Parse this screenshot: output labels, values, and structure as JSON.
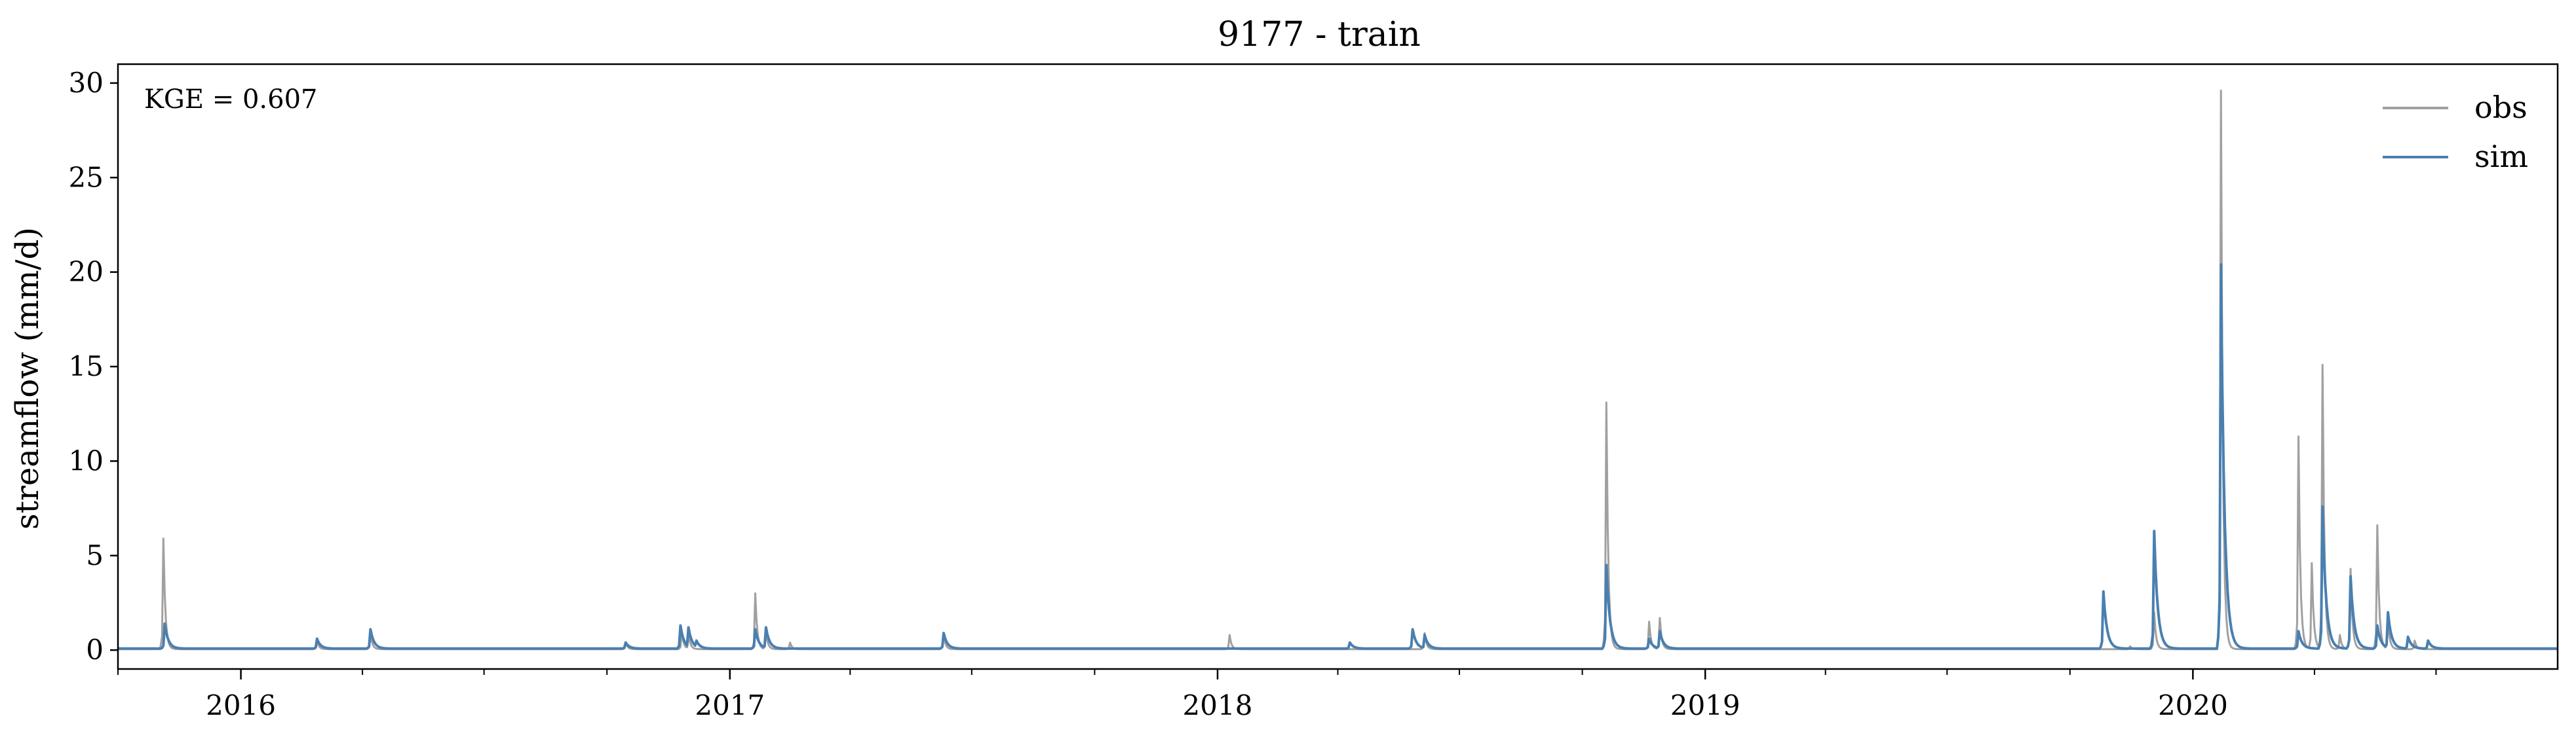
{
  "chart_data": {
    "type": "line",
    "title": "9177 - train",
    "xlabel": "",
    "ylabel": "streamflow (mm/d)",
    "annotation": "KGE = 0.607",
    "xlim": [
      "2015-10-01",
      "2020-09-30"
    ],
    "ylim": [
      -1,
      31
    ],
    "yticks": [
      0,
      5,
      10,
      15,
      20,
      25,
      30
    ],
    "xticks": [
      "2016-01-01",
      "2017-01-01",
      "2018-01-01",
      "2019-01-01",
      "2020-01-01"
    ],
    "xtick_labels": [
      "2016",
      "2017",
      "2018",
      "2019",
      "2020"
    ],
    "grid": false,
    "legend": "top-right",
    "series": [
      {
        "name": "obs",
        "color": "#a0a0a0",
        "base": 0.05,
        "peaks": [
          [
            "2015-11-04",
            5.9
          ],
          [
            "2016-02-27",
            0.5
          ],
          [
            "2016-04-07",
            0.9
          ],
          [
            "2016-10-15",
            0.4
          ],
          [
            "2016-11-26",
            1.0
          ],
          [
            "2016-12-01",
            0.9
          ],
          [
            "2017-01-20",
            3.0
          ],
          [
            "2017-01-28",
            1.0
          ],
          [
            "2017-02-15",
            0.4
          ],
          [
            "2017-06-10",
            0.8
          ],
          [
            "2018-01-10",
            0.8
          ],
          [
            "2018-06-05",
            0.9
          ],
          [
            "2018-10-19",
            13.1
          ],
          [
            "2018-11-20",
            1.5
          ],
          [
            "2018-11-28",
            1.7
          ],
          [
            "2019-11-15",
            0.2
          ],
          [
            "2019-12-03",
            2.0
          ],
          [
            "2020-01-22",
            29.6
          ],
          [
            "2020-03-20",
            11.3
          ],
          [
            "2020-03-30",
            4.6
          ],
          [
            "2020-04-07",
            15.1
          ],
          [
            "2020-04-20",
            0.8
          ],
          [
            "2020-04-28",
            4.3
          ],
          [
            "2020-05-18",
            6.6
          ],
          [
            "2020-05-26",
            1.6
          ],
          [
            "2020-06-15",
            0.5
          ]
        ]
      },
      {
        "name": "sim",
        "color": "#4a7fb0",
        "base": 0.08,
        "peaks": [
          [
            "2015-11-05",
            1.4
          ],
          [
            "2016-02-27",
            0.6
          ],
          [
            "2016-04-07",
            1.1
          ],
          [
            "2016-10-15",
            0.4
          ],
          [
            "2016-11-25",
            1.3
          ],
          [
            "2016-12-01",
            1.2
          ],
          [
            "2016-12-07",
            0.5
          ],
          [
            "2017-01-20",
            1.1
          ],
          [
            "2017-01-28",
            1.2
          ],
          [
            "2017-06-10",
            0.9
          ],
          [
            "2018-04-10",
            0.4
          ],
          [
            "2018-05-27",
            1.1
          ],
          [
            "2018-06-05",
            0.8
          ],
          [
            "2018-10-19",
            4.5
          ],
          [
            "2018-11-20",
            0.6
          ],
          [
            "2018-11-28",
            1.0
          ],
          [
            "2019-10-26",
            3.1
          ],
          [
            "2019-12-03",
            6.3
          ],
          [
            "2020-01-22",
            20.4
          ],
          [
            "2020-01-26",
            4.5
          ],
          [
            "2020-03-20",
            1.0
          ],
          [
            "2020-04-07",
            7.6
          ],
          [
            "2020-04-28",
            3.9
          ],
          [
            "2020-05-18",
            1.3
          ],
          [
            "2020-05-26",
            2.0
          ],
          [
            "2020-06-10",
            0.7
          ],
          [
            "2020-06-25",
            0.5
          ]
        ]
      }
    ]
  }
}
